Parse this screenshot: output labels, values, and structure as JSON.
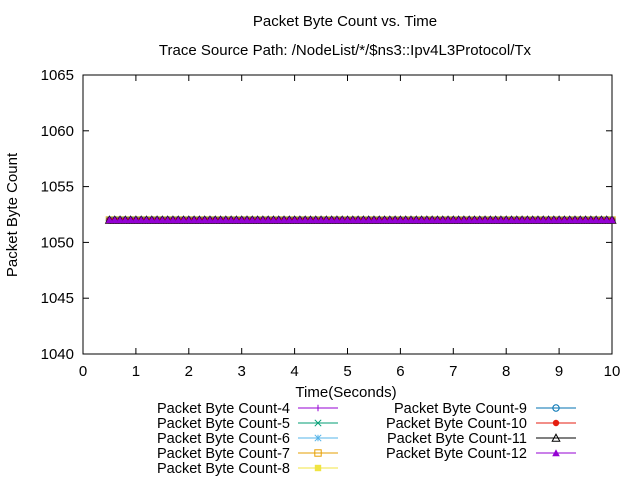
{
  "chart_data": {
    "type": "line",
    "title": "Packet Byte Count vs. Time",
    "subtitle": "Trace Source Path: /NodeList/*/$ns3::Ipv4L3Protocol/Tx",
    "xlabel": "Time(Seconds)",
    "ylabel": "Packet Byte Count",
    "xlim": [
      0,
      10
    ],
    "ylim": [
      1040,
      1065
    ],
    "xticks": [
      0,
      1,
      2,
      3,
      4,
      5,
      6,
      7,
      8,
      9,
      10
    ],
    "yticks": [
      1040,
      1045,
      1050,
      1055,
      1060,
      1065
    ],
    "grid": false,
    "legend_position": "bottom",
    "x_range": [
      0.5,
      10.0
    ],
    "x_step": 0.1,
    "series": [
      {
        "name": "Packet Byte Count-4",
        "color": "#9400d3",
        "marker": "plus",
        "value": 1052
      },
      {
        "name": "Packet Byte Count-5",
        "color": "#009e73",
        "marker": "cross",
        "value": 1052
      },
      {
        "name": "Packet Byte Count-6",
        "color": "#56b4e9",
        "marker": "star",
        "value": 1052
      },
      {
        "name": "Packet Byte Count-7",
        "color": "#e69f00",
        "marker": "open-square",
        "value": 1052
      },
      {
        "name": "Packet Byte Count-8",
        "color": "#f0e442",
        "marker": "filled-square",
        "value": 1052
      },
      {
        "name": "Packet Byte Count-9",
        "color": "#0072b2",
        "marker": "open-circle",
        "value": 1052
      },
      {
        "name": "Packet Byte Count-10",
        "color": "#e51e10",
        "marker": "filled-circle",
        "value": 1052
      },
      {
        "name": "Packet Byte Count-11",
        "color": "#000000",
        "marker": "open-triangle",
        "value": 1052
      },
      {
        "name": "Packet Byte Count-12",
        "color": "#9400d3",
        "marker": "filled-triangle",
        "value": 1052
      }
    ]
  }
}
